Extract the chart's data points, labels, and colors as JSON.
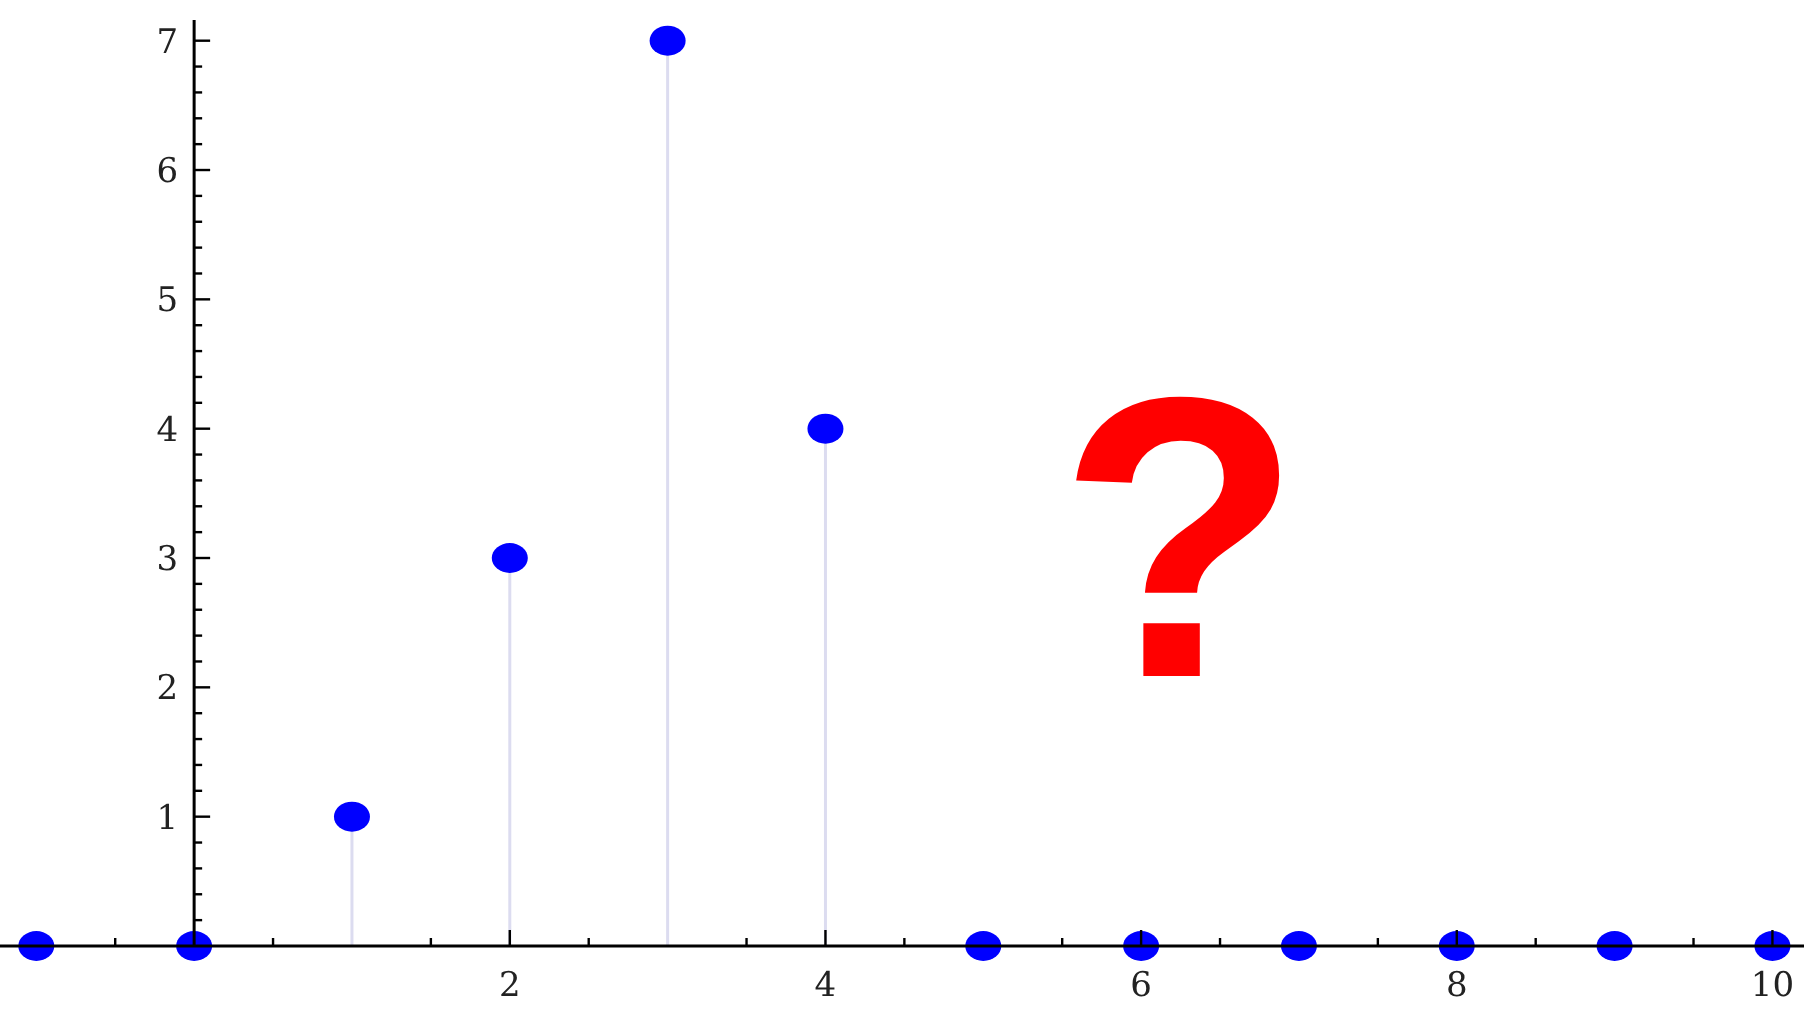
{
  "chart_data": {
    "type": "lollipop",
    "x": [
      -1,
      0,
      1,
      2,
      3,
      4,
      5,
      6,
      7,
      8,
      9,
      10
    ],
    "values": [
      0,
      0,
      1,
      3,
      7,
      4,
      0,
      0,
      0,
      0,
      0,
      0
    ],
    "color": "#0000ff",
    "marker": "circle",
    "xlim": [
      -1.23,
      10.2
    ],
    "ylim": [
      0,
      7.16
    ],
    "xticks": [
      {
        "value": -0.5,
        "label": null
      },
      {
        "value": 0.5,
        "label": null
      },
      {
        "value": 1.5,
        "label": null
      },
      2,
      {
        "value": 2.5,
        "label": null
      },
      {
        "value": 3.5,
        "label": null
      },
      4,
      {
        "value": 4.5,
        "label": null
      },
      {
        "value": 5.5,
        "label": null
      },
      6,
      {
        "value": 6.5,
        "label": null
      },
      {
        "value": 7.5,
        "label": null
      },
      8,
      {
        "value": 8.5,
        "label": null
      },
      {
        "value": 9.5,
        "label": null
      },
      10
    ],
    "yticks": [
      {
        "value": 0.2,
        "label": null
      },
      {
        "value": 0.4,
        "label": null
      },
      {
        "value": 0.6,
        "label": null
      },
      {
        "value": 0.8,
        "label": null
      },
      1,
      {
        "value": 1.2,
        "label": null
      },
      {
        "value": 1.4,
        "label": null
      },
      {
        "value": 1.6,
        "label": null
      },
      {
        "value": 1.8,
        "label": null
      },
      2,
      {
        "value": 2.2,
        "label": null
      },
      {
        "value": 2.4,
        "label": null
      },
      {
        "value": 2.6,
        "label": null
      },
      {
        "value": 2.8,
        "label": null
      },
      3,
      {
        "value": 3.2,
        "label": null
      },
      {
        "value": 3.4,
        "label": null
      },
      {
        "value": 3.6,
        "label": null
      },
      {
        "value": 3.8,
        "label": null
      },
      4,
      {
        "value": 4.2,
        "label": null
      },
      {
        "value": 4.4,
        "label": null
      },
      {
        "value": 4.6,
        "label": null
      },
      {
        "value": 4.8,
        "label": null
      },
      5,
      {
        "value": 5.2,
        "label": null
      },
      {
        "value": 5.4,
        "label": null
      },
      {
        "value": 5.6,
        "label": null
      },
      {
        "value": 5.8,
        "label": null
      },
      6,
      {
        "value": 6.2,
        "label": null
      },
      {
        "value": 6.4,
        "label": null
      },
      {
        "value": 6.6,
        "label": null
      },
      {
        "value": 6.8,
        "label": null
      },
      7
    ],
    "annotations": [
      "?"
    ]
  }
}
